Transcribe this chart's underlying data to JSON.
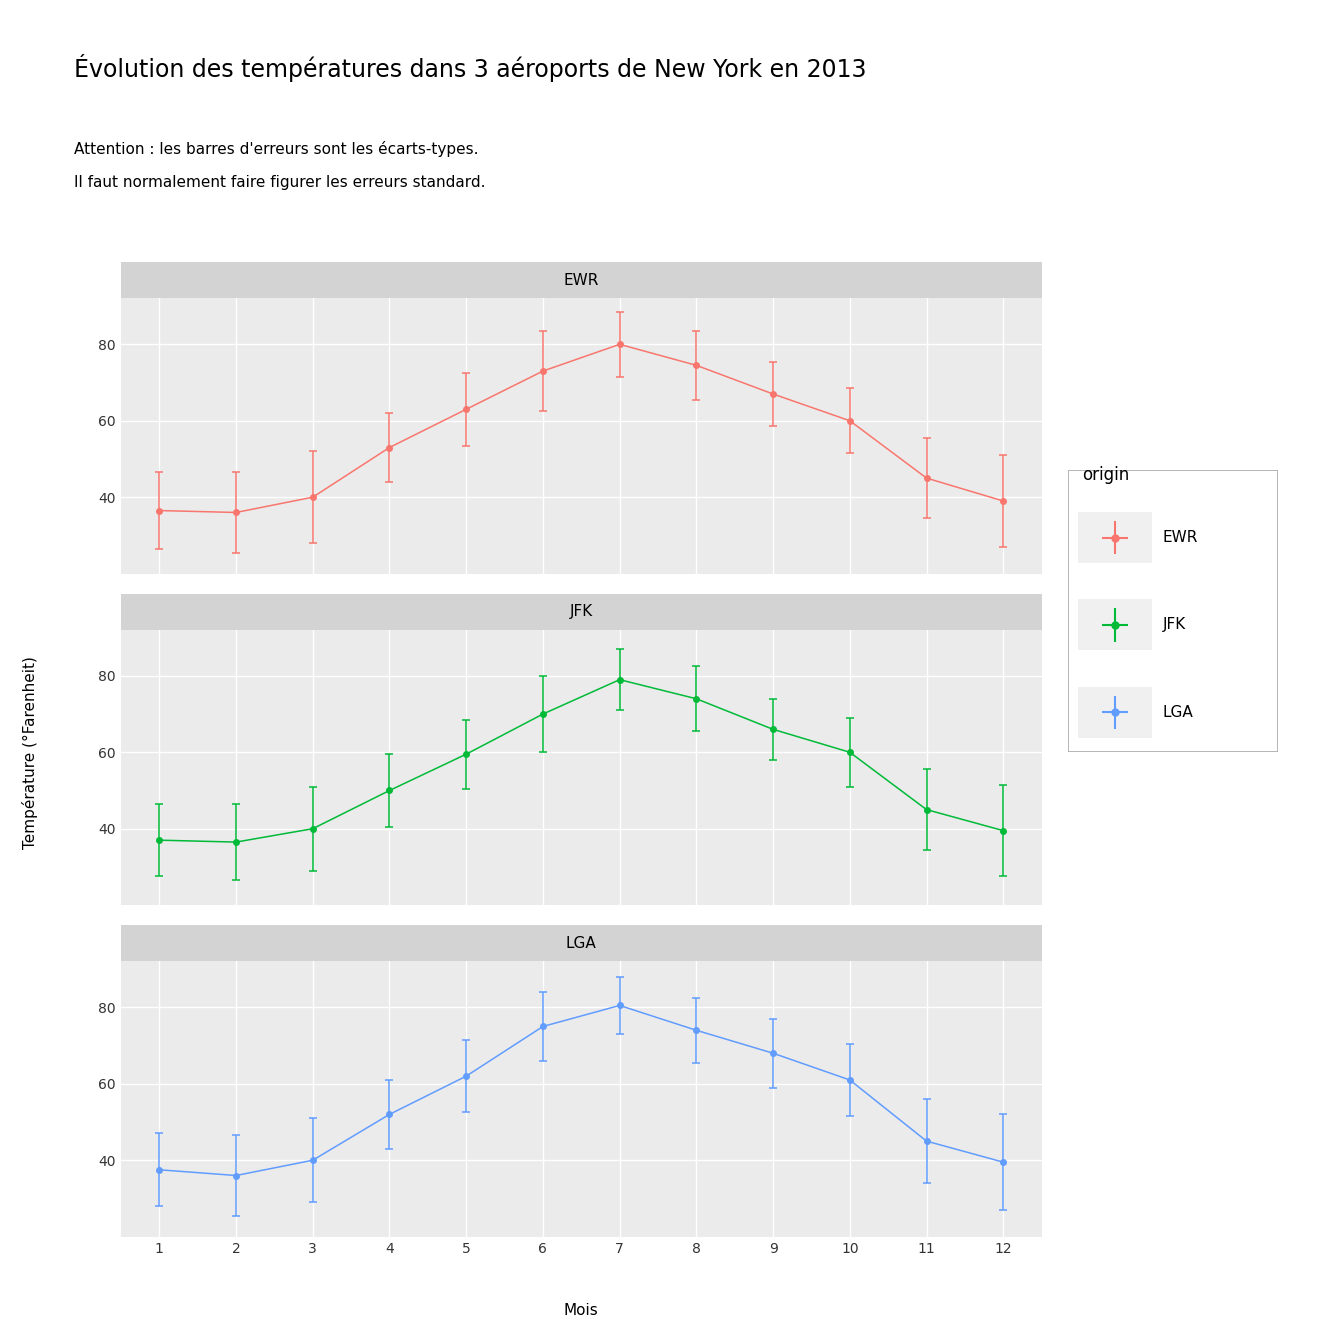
{
  "title": "Évolution des températures dans 3 aéroports de New York en 2013",
  "subtitle_line1": "Attention : les barres d'erreurs sont les écarts-types.",
  "subtitle_line2": "Il faut normalement faire figurer les erreurs standard.",
  "xlabel": "Mois",
  "ylabel": "Température (°Farenheit)",
  "months": [
    1,
    2,
    3,
    4,
    5,
    6,
    7,
    8,
    9,
    10,
    11,
    12
  ],
  "EWR": {
    "mean": [
      36.5,
      36.0,
      40.0,
      53.0,
      63.0,
      73.0,
      80.0,
      74.5,
      67.0,
      60.0,
      45.0,
      39.0
    ],
    "sd": [
      10.0,
      10.5,
      12.0,
      9.0,
      9.5,
      10.5,
      8.5,
      9.0,
      8.5,
      8.5,
      10.5,
      12.0
    ]
  },
  "JFK": {
    "mean": [
      37.0,
      36.5,
      40.0,
      50.0,
      59.5,
      70.0,
      79.0,
      74.0,
      66.0,
      60.0,
      45.0,
      39.5
    ],
    "sd": [
      9.5,
      10.0,
      11.0,
      9.5,
      9.0,
      10.0,
      8.0,
      8.5,
      8.0,
      9.0,
      10.5,
      12.0
    ]
  },
  "LGA": {
    "mean": [
      37.5,
      36.0,
      40.0,
      52.0,
      62.0,
      75.0,
      80.5,
      74.0,
      68.0,
      61.0,
      45.0,
      39.5
    ],
    "sd": [
      9.5,
      10.5,
      11.0,
      9.0,
      9.5,
      9.0,
      7.5,
      8.5,
      9.0,
      9.5,
      11.0,
      12.5
    ]
  },
  "colors": {
    "EWR": "#F8766D",
    "JFK": "#00BA38",
    "LGA": "#619CFF"
  },
  "panel_bg": "#EBEBEB",
  "panel_strip_bg": "#D3D3D3",
  "plot_bg": "#FFFFFF",
  "grid_color": "#FFFFFF",
  "ylim": [
    20,
    92
  ],
  "yticks": [
    40,
    60,
    80
  ],
  "legend_title": "origin",
  "title_fontsize": 17,
  "subtitle_fontsize": 11,
  "axis_label_fontsize": 11,
  "tick_fontsize": 10,
  "strip_fontsize": 11
}
